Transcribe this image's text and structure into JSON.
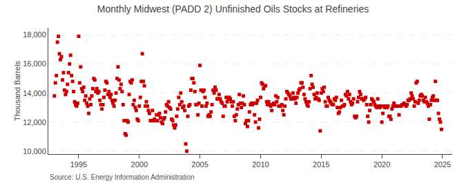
{
  "chart_data": {
    "type": "scatter",
    "title": "Monthly Midwest (PADD 2) Unfinished Oils Stocks at Refineries",
    "ylabel": "Thousand Barrels",
    "annotations": [
      "Source: U.S. Energy Information Administration"
    ],
    "color": "#cc0000",
    "marker": "square",
    "grid": "y",
    "xlim": [
      1992.5,
      2025.8
    ],
    "ylim": [
      9800,
      18500
    ],
    "xticks": [
      1995,
      2000,
      2005,
      2010,
      2015,
      2020,
      2025
    ],
    "yticks": [
      {
        "value": 10000,
        "label": "10,000"
      },
      {
        "value": 12000,
        "label": "12,000"
      },
      {
        "value": 14000,
        "label": "14,000"
      },
      {
        "value": 16000,
        "label": "16,000"
      },
      {
        "value": 18000,
        "label": "18,000"
      }
    ],
    "x": [
      1993.0,
      1993.083,
      1993.167,
      1993.25,
      1993.333,
      1993.417,
      1993.5,
      1993.583,
      1993.667,
      1993.75,
      1993.833,
      1993.917,
      1994.0,
      1994.083,
      1994.167,
      1994.25,
      1994.333,
      1994.417,
      1994.5,
      1994.583,
      1994.667,
      1994.75,
      1994.833,
      1994.917,
      1995.0,
      1995.083,
      1995.167,
      1995.25,
      1995.333,
      1995.417,
      1995.5,
      1995.583,
      1995.667,
      1995.75,
      1995.833,
      1995.917,
      1996.0,
      1996.083,
      1996.167,
      1996.25,
      1996.333,
      1996.417,
      1996.5,
      1996.583,
      1996.667,
      1996.75,
      1996.833,
      1996.917,
      1997.0,
      1997.083,
      1997.167,
      1997.25,
      1997.333,
      1997.417,
      1997.5,
      1997.583,
      1997.667,
      1997.75,
      1997.833,
      1997.917,
      1998.0,
      1998.083,
      1998.167,
      1998.25,
      1998.333,
      1998.417,
      1998.5,
      1998.583,
      1998.667,
      1998.75,
      1998.833,
      1998.917,
      1999.0,
      1999.083,
      1999.167,
      1999.25,
      1999.333,
      1999.417,
      1999.5,
      1999.583,
      1999.667,
      1999.75,
      1999.833,
      1999.917,
      2000.0,
      2000.083,
      2000.167,
      2000.25,
      2000.333,
      2000.417,
      2000.5,
      2000.583,
      2000.667,
      2000.75,
      2000.833,
      2000.917,
      2001.0,
      2001.083,
      2001.167,
      2001.25,
      2001.333,
      2001.417,
      2001.5,
      2001.583,
      2001.667,
      2001.75,
      2001.833,
      2001.917,
      2002.0,
      2002.083,
      2002.167,
      2002.25,
      2002.333,
      2002.417,
      2002.5,
      2002.583,
      2002.667,
      2002.75,
      2002.833,
      2002.917,
      2003.0,
      2003.083,
      2003.167,
      2003.25,
      2003.333,
      2003.417,
      2003.5,
      2003.583,
      2003.667,
      2003.75,
      2003.833,
      2003.917,
      2004.0,
      2004.083,
      2004.167,
      2004.25,
      2004.333,
      2004.417,
      2004.5,
      2004.583,
      2004.667,
      2004.75,
      2004.833,
      2004.917,
      2005.0,
      2005.083,
      2005.167,
      2005.25,
      2005.333,
      2005.417,
      2005.5,
      2005.583,
      2005.667,
      2005.75,
      2005.833,
      2005.917,
      2006.0,
      2006.083,
      2006.167,
      2006.25,
      2006.333,
      2006.417,
      2006.5,
      2006.583,
      2006.667,
      2006.75,
      2006.833,
      2006.917,
      2007.0,
      2007.083,
      2007.167,
      2007.25,
      2007.333,
      2007.417,
      2007.5,
      2007.583,
      2007.667,
      2007.75,
      2007.833,
      2007.917,
      2008.0,
      2008.083,
      2008.167,
      2008.25,
      2008.333,
      2008.417,
      2008.5,
      2008.583,
      2008.667,
      2008.75,
      2008.833,
      2008.917,
      2009.0,
      2009.083,
      2009.167,
      2009.25,
      2009.333,
      2009.417,
      2009.5,
      2009.583,
      2009.667,
      2009.75,
      2009.833,
      2009.917,
      2010.0,
      2010.083,
      2010.167,
      2010.25,
      2010.333,
      2010.417,
      2010.5,
      2010.583,
      2010.667,
      2010.75,
      2010.833,
      2010.917,
      2011.0,
      2011.083,
      2011.167,
      2011.25,
      2011.333,
      2011.417,
      2011.5,
      2011.583,
      2011.667,
      2011.75,
      2011.833,
      2011.917,
      2012.0,
      2012.083,
      2012.167,
      2012.25,
      2012.333,
      2012.417,
      2012.5,
      2012.583,
      2012.667,
      2012.75,
      2012.833,
      2012.917,
      2013.0,
      2013.083,
      2013.167,
      2013.25,
      2013.333,
      2013.417,
      2013.5,
      2013.583,
      2013.667,
      2013.75,
      2013.833,
      2013.917,
      2014.0,
      2014.083,
      2014.167,
      2014.25,
      2014.333,
      2014.417,
      2014.5,
      2014.583,
      2014.667,
      2014.75,
      2014.833,
      2014.917,
      2015.0,
      2015.083,
      2015.167,
      2015.25,
      2015.333,
      2015.417,
      2015.5,
      2015.583,
      2015.667,
      2015.75,
      2015.833,
      2015.917,
      2016.0,
      2016.083,
      2016.167,
      2016.25,
      2016.333,
      2016.417,
      2016.5,
      2016.583,
      2016.667,
      2016.75,
      2016.833,
      2016.917,
      2017.0,
      2017.083,
      2017.167,
      2017.25,
      2017.333,
      2017.417,
      2017.5,
      2017.583,
      2017.667,
      2017.75,
      2017.833,
      2017.917,
      2018.0,
      2018.083,
      2018.167,
      2018.25,
      2018.333,
      2018.417,
      2018.5,
      2018.583,
      2018.667,
      2018.75,
      2018.833,
      2018.917,
      2019.0,
      2019.083,
      2019.167,
      2019.25,
      2019.333,
      2019.417,
      2019.5,
      2019.583,
      2019.667,
      2019.75,
      2019.833,
      2019.917,
      2020.0,
      2020.083,
      2020.167,
      2020.25,
      2020.333,
      2020.417,
      2020.5,
      2020.583,
      2020.667,
      2020.75,
      2020.833,
      2020.917,
      2021.0,
      2021.083,
      2021.167,
      2021.25,
      2021.333,
      2021.417,
      2021.5,
      2021.583,
      2021.667,
      2021.75,
      2021.833,
      2021.917,
      2022.0,
      2022.083,
      2022.167,
      2022.25,
      2022.333,
      2022.417,
      2022.5,
      2022.583,
      2022.667,
      2022.75,
      2022.833,
      2022.917,
      2023.0,
      2023.083,
      2023.167,
      2023.25,
      2023.333,
      2023.417,
      2023.5,
      2023.583,
      2023.667,
      2023.75,
      2023.833,
      2023.917,
      2024.0,
      2024.083,
      2024.167,
      2024.25,
      2024.333,
      2024.417,
      2024.5,
      2024.583,
      2024.667,
      2024.75,
      2024.833,
      2024.917
    ],
    "values": [
      13800,
      14700,
      15200,
      17500,
      17900,
      16700,
      16300,
      16500,
      14900,
      15400,
      14200,
      13900,
      14100,
      14600,
      15400,
      16000,
      16600,
      15200,
      14800,
      14100,
      13400,
      13200,
      13100,
      13300,
      17900,
      14700,
      15800,
      14300,
      14100,
      14400,
      13500,
      13800,
      13300,
      13100,
      12600,
      13600,
      13200,
      13800,
      14300,
      15000,
      14900,
      14100,
      14300,
      14000,
      14100,
      13500,
      13200,
      12900,
      13200,
      13700,
      14200,
      14800,
      14700,
      13900,
      14100,
      13700,
      13900,
      13500,
      13300,
      13100,
      13500,
      14000,
      15000,
      15800,
      14900,
      14300,
      14600,
      14100,
      13200,
      12100,
      11200,
      11100,
      12100,
      12000,
      13900,
      14800,
      14700,
      14900,
      13200,
      13500,
      13000,
      12800,
      12200,
      12100,
      13100,
      13700,
      14800,
      16700,
      14800,
      14500,
      13100,
      13400,
      13100,
      12800,
      12600,
      12100,
      12100,
      12800,
      12100,
      12200,
      12100,
      12500,
      12100,
      12500,
      12600,
      12300,
      12000,
      11900,
      12200,
      12300,
      12700,
      13200,
      13100,
      13400,
      13000,
      12900,
      12200,
      12100,
      11800,
      11600,
      11800,
      12400,
      12900,
      13700,
      13200,
      14000,
      13400,
      13000,
      13100,
      12800,
      10500,
      10000,
      12400,
      13100,
      13200,
      14200,
      15000,
      15000,
      14700,
      14100,
      13200,
      13200,
      12500,
      13300,
      15900,
      14200,
      13100,
      14100,
      14200,
      13700,
      13100,
      13300,
      12400,
      12500,
      12400,
      12700,
      13200,
      14200,
      14000,
      14400,
      14200,
      13600,
      13600,
      13900,
      13600,
      13400,
      13300,
      12400,
      13100,
      13100,
      13700,
      13400,
      13600,
      13700,
      13600,
      13400,
      13100,
      13400,
      12400,
      12100,
      12500,
      12900,
      13200,
      13900,
      13300,
      13000,
      13300,
      13800,
      13200,
      11900,
      12100,
      11700,
      12100,
      12700,
      13200,
      13300,
      13200,
      13300,
      12500,
      12000,
      13300,
      13500,
      11600,
      12200,
      13700,
      14700,
      14600,
      14300,
      14500,
      14500,
      13400,
      13200,
      13400,
      13200,
      13100,
      12800,
      13200,
      13300,
      13200,
      13800,
      13400,
      13700,
      13100,
      13100,
      13100,
      13200,
      12800,
      12500,
      13100,
      13600,
      14100,
      14000,
      13900,
      13800,
      13600,
      13600,
      14000,
      13700,
      13600,
      13300,
      13700,
      14000,
      14200,
      14300,
      14700,
      14700,
      14400,
      13900,
      13600,
      13400,
      13200,
      13100,
      13400,
      14300,
      15200,
      14600,
      14400,
      13900,
      13600,
      13700,
      14000,
      13600,
      13500,
      11400,
      14000,
      14300,
      14100,
      14400,
      13400,
      13100,
      13100,
      13700,
      13500,
      13400,
      13300,
      13200,
      13200,
      13600,
      13500,
      13700,
      13000,
      12600,
      12700,
      13000,
      13500,
      13100,
      13100,
      13200,
      13900,
      13800,
      14100,
      13600,
      13900,
      13400,
      13200,
      13300,
      13600,
      12400,
      12300,
      12400,
      13400,
      13700,
      14100,
      13900,
      13600,
      13600,
      13500,
      13600,
      13700,
      13200,
      12400,
      12000,
      12800,
      13200,
      13600,
      13500,
      13400,
      13200,
      13100,
      13000,
      13600,
      13100,
      13000,
      13100,
      12000,
      12600,
      13100,
      13000,
      13100,
      13000,
      13100,
      12400,
      12400,
      12200,
      12900,
      13100,
      13300,
      13100,
      13100,
      13100,
      13100,
      12500,
      13100,
      13100,
      13200,
      13200,
      13300,
      13200,
      13100,
      13200,
      13500,
      13500,
      13600,
      14000,
      13800,
      13600,
      13100,
      13400,
      14700,
      14800,
      13300,
      13500,
      13800,
      13900,
      13800,
      13500,
      13400,
      13700,
      13400,
      13300,
      13100,
      12200,
      13200,
      13500,
      13700,
      13800,
      13500,
      14800,
      13500,
      13500,
      12600,
      12200,
      12000,
      11500
    ]
  }
}
